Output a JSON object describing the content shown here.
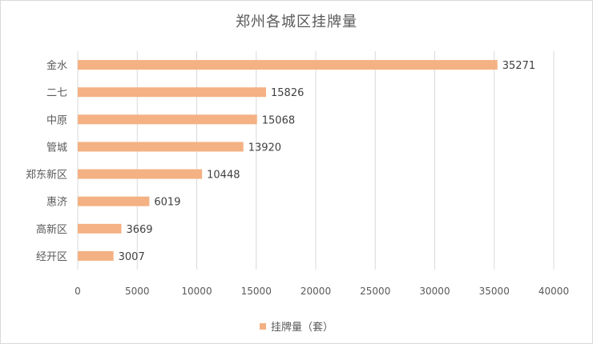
{
  "chart_data": {
    "type": "bar",
    "orientation": "horizontal",
    "title": "郑州各城区挂牌量",
    "categories": [
      "金水",
      "二七",
      "中原",
      "管城",
      "郑东新区",
      "惠济",
      "高新区",
      "经开区"
    ],
    "series": [
      {
        "name": "挂牌量（套）",
        "values": [
          35271,
          15826,
          15068,
          13920,
          10448,
          6019,
          3669,
          3007
        ],
        "color": "#f4b183"
      }
    ],
    "xlim": [
      0,
      40000
    ],
    "xticks": [
      0,
      5000,
      10000,
      15000,
      20000,
      25000,
      30000,
      35000,
      40000
    ],
    "grid": "vertical",
    "legend_position": "bottom",
    "data_labels": true
  }
}
